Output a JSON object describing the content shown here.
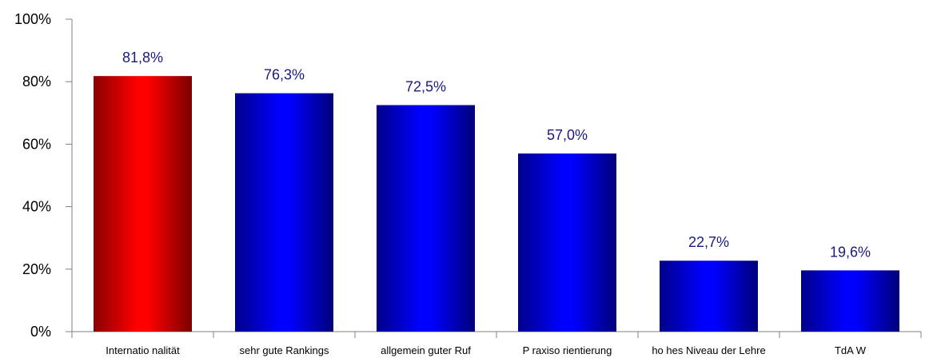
{
  "chart_data": {
    "type": "bar",
    "title": "",
    "xlabel": "",
    "ylabel": "",
    "ylim": [
      0,
      100
    ],
    "y_ticks": [
      "0%",
      "20%",
      "40%",
      "60%",
      "80%",
      "100%"
    ],
    "y_tick_values": [
      0,
      20,
      40,
      60,
      80,
      100
    ],
    "grid": false,
    "legend": "none",
    "categories": [
      "Internatio nalität",
      "sehr gute Rankings",
      "allgemein guter Ruf",
      "P raxiso rientierung",
      "ho hes Niveau der Lehre",
      "TdA W"
    ],
    "values": [
      81.8,
      76.3,
      72.5,
      57.0,
      22.7,
      19.6
    ],
    "value_labels": [
      "81,8%",
      "76,3%",
      "72,5%",
      "57,0%",
      "22,7%",
      "19,6%"
    ],
    "bar_colors": [
      "#e00000",
      "#1010d0",
      "#1010d0",
      "#1010d0",
      "#1010d0",
      "#1010d0"
    ],
    "highlight_color": "#ff0000",
    "default_color": "#0000ff",
    "value_label_color": "#1a1a80"
  }
}
